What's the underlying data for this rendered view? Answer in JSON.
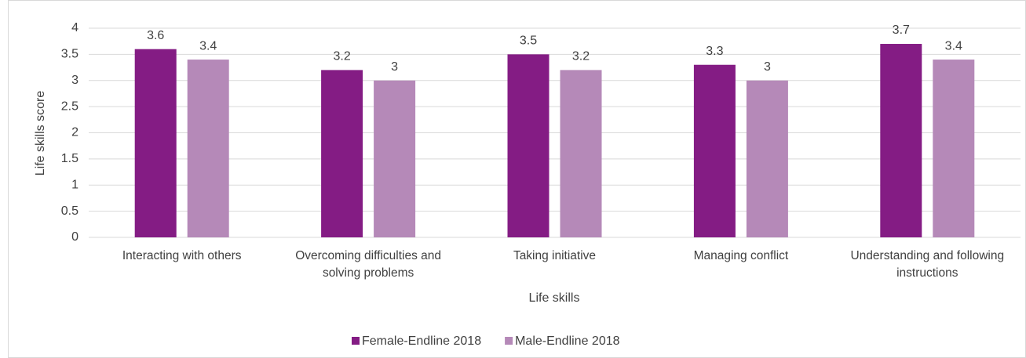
{
  "chart_data": {
    "type": "bar",
    "categories": [
      "Interacting with others",
      "Overcoming difficulties and solving problems",
      "Taking  initiative",
      "Managing conflict",
      "Understanding and following instructions"
    ],
    "series": [
      {
        "name": "Female-Endline 2018",
        "color": "#841c84",
        "values": [
          3.6,
          3.2,
          3.5,
          3.3,
          3.7
        ]
      },
      {
        "name": "Male-Endline 2018",
        "color": "#b589b8",
        "values": [
          3.4,
          3,
          3.2,
          3,
          3.4
        ]
      }
    ],
    "xlabel": "Life skills",
    "ylabel": "Life skills score",
    "ylim": [
      0,
      4
    ],
    "yticks": [
      0,
      0.5,
      1,
      1.5,
      2,
      2.5,
      3,
      3.5,
      4
    ],
    "grid": true,
    "legend": "bottom"
  }
}
